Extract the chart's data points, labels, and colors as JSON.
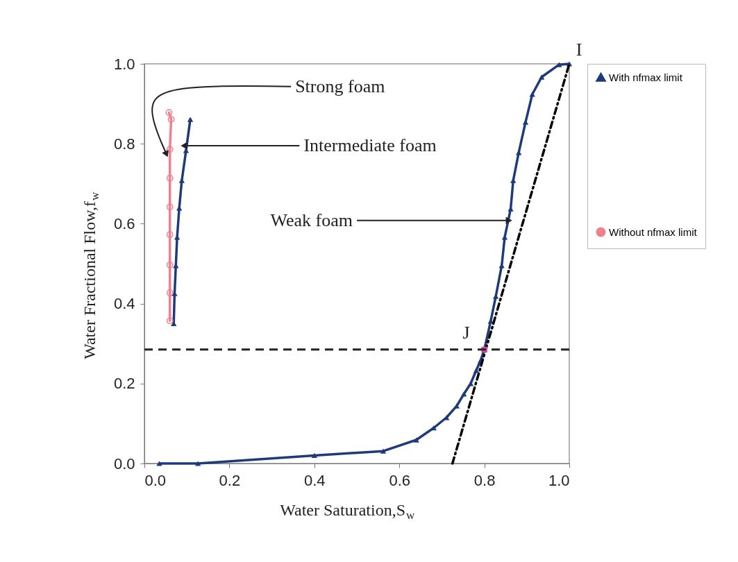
{
  "chart_data": {
    "type": "line",
    "xlabel": "Water Saturation,S$_{w}$",
    "ylabel": "Water Fractional Flow,f$_{w}$",
    "xlim": [
      0,
      1
    ],
    "ylim": [
      0,
      1
    ],
    "xticks": [
      {
        "value": 0,
        "label": "0.0"
      },
      0.2,
      0.4,
      0.6,
      0.8,
      {
        "value": 1,
        "label": "1.0"
      }
    ],
    "yticks": [
      {
        "value": 0,
        "label": "0.0"
      },
      0.2,
      0.4,
      0.6,
      0.8,
      {
        "value": 1,
        "label": "1.0"
      }
    ],
    "grid": false,
    "legend": "right",
    "series": [
      {
        "name": "With nfmax limit",
        "color": "#1f3a7a",
        "marker": "triangle",
        "line_style": "solid",
        "x": [
          0.069,
          0.071,
          0.074,
          0.077,
          0.082,
          0.088,
          0.098,
          0.108,
          null,
          0.035,
          0.126,
          0.4,
          0.562,
          0.64,
          0.681,
          0.711,
          0.735,
          0.752,
          0.768,
          0.781,
          0.791,
          0.8,
          0.815,
          0.827,
          0.841,
          0.848,
          0.862,
          0.868,
          0.881,
          0.897,
          0.913,
          0.935,
          0.976,
          1.0
        ],
        "values": [
          0.35,
          0.425,
          0.495,
          0.566,
          0.639,
          0.708,
          0.783,
          0.861,
          null,
          0.0,
          0.0,
          0.02,
          0.031,
          0.059,
          0.089,
          0.115,
          0.144,
          0.174,
          0.2,
          0.233,
          0.257,
          0.285,
          0.356,
          0.418,
          0.495,
          0.566,
          0.637,
          0.708,
          0.778,
          0.854,
          0.924,
          0.967,
          0.998,
          1.0
        ]
      },
      {
        "name": "Without nfmax limit",
        "color": "#f08090",
        "marker": "circle",
        "line_style": "solid",
        "x": [
          0.06,
          0.06,
          0.06,
          0.06,
          0.06,
          0.06,
          0.06,
          0.063,
          0.058
        ],
        "values": [
          0.357,
          0.427,
          0.497,
          0.573,
          0.642,
          0.714,
          0.786,
          0.861,
          0.878
        ]
      },
      {
        "type": "line",
        "color": "#000000",
        "marker": "none",
        "line_style": "dashed",
        "x": [
          0.725,
          1.0
        ],
        "values": [
          0.0,
          1.0
        ]
      },
      {
        "type": "scatter",
        "color": "#e0409a",
        "marker": "square",
        "x": [
          0.8
        ],
        "values": [
          0.285
        ]
      }
    ],
    "ref_lines": [
      {
        "axis": "y",
        "value": 0.285,
        "color": "#222222",
        "line_style": "dashed"
      }
    ],
    "annotations": [
      {
        "text": "Strong foam",
        "x": 0.052,
        "y": 0.774
      },
      {
        "text": "Intermediate foam",
        "x": 0.093,
        "y": 0.795
      },
      {
        "text": "Weak foam",
        "x": 0.858,
        "y": 0.608
      },
      {
        "text": "I",
        "x": 1.0,
        "y": 1.0
      },
      {
        "text": "J",
        "x": 0.8,
        "y": 0.285
      }
    ]
  }
}
